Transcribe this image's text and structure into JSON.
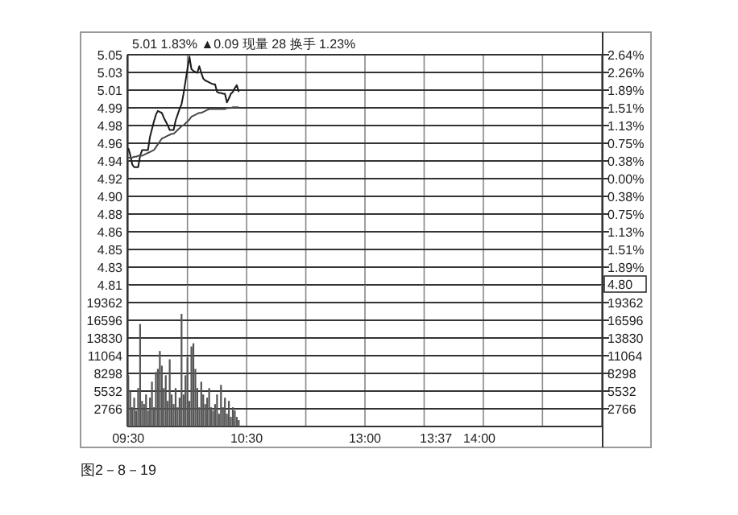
{
  "chart_data": [
    {
      "type": "line",
      "title": "5.01 1.83% ▲0.09 现量 28 换手 1.23%",
      "categories": [
        null,
        null,
        null,
        null,
        null,
        null,
        null,
        null,
        null,
        null,
        null,
        null,
        null,
        null,
        null,
        null,
        null,
        null,
        null,
        null,
        null,
        null,
        null,
        null,
        null,
        null,
        null,
        null,
        null,
        null,
        null,
        null,
        null,
        null,
        null,
        null,
        null,
        null,
        null,
        null,
        null,
        null,
        null,
        null,
        null,
        null,
        null,
        null,
        null,
        null,
        null,
        null,
        null,
        null,
        null,
        null,
        null,
        null,
        null,
        null,
        null,
        null,
        null,
        null,
        null,
        null,
        null,
        null,
        null,
        null,
        null,
        null,
        null,
        null,
        null,
        null,
        null,
        null,
        null,
        null,
        null,
        null,
        null,
        null,
        null,
        null,
        null,
        null,
        null,
        null,
        null,
        null,
        null,
        null,
        null,
        null,
        null,
        null,
        null,
        null,
        null,
        null,
        null,
        null,
        null,
        null,
        null,
        null,
        null,
        null,
        null,
        null,
        null,
        null,
        null,
        null,
        null,
        null,
        null,
        null,
        null,
        null,
        null,
        null,
        null,
        null,
        null,
        null,
        null,
        null,
        null,
        null,
        null,
        null,
        null,
        null,
        null,
        null,
        null,
        null,
        null,
        null,
        null,
        null,
        null,
        null,
        null,
        null,
        null,
        null,
        null,
        null,
        null,
        null,
        null,
        null,
        null,
        null,
        null,
        null,
        null,
        null,
        null,
        null,
        null,
        null,
        null,
        null,
        null,
        null,
        null,
        null,
        null,
        null,
        null,
        null,
        null,
        null,
        null,
        null,
        null,
        null,
        null,
        null,
        null,
        null,
        null,
        null,
        null,
        null,
        null,
        null,
        null,
        null,
        null,
        null,
        null,
        null,
        null,
        null,
        null,
        null,
        null,
        null,
        null,
        null,
        null,
        null,
        null,
        null,
        null,
        null,
        null,
        null,
        null,
        null,
        null,
        null,
        null,
        null,
        null,
        null,
        null,
        null,
        null,
        null,
        null,
        null,
        null,
        null,
        null,
        null,
        null,
        null,
        null,
        null,
        null,
        null,
        null,
        null,
        null
      ],
      "ylim": [
        4.80858,
        5.05
      ],
      "yticks": [
        {
          "value": 5.04999,
          "label": "5.05"
        },
        {
          "value": 5.03142,
          "label": "5.03"
        },
        {
          "value": 5.01285,
          "label": "5.01"
        },
        {
          "value": 4.99428,
          "label": "4.99"
        },
        {
          "value": 4.97571,
          "label": "4.98"
        },
        {
          "value": 4.95714,
          "label": "4.96"
        },
        {
          "value": 4.93857,
          "label": "4.94"
        },
        {
          "value": 4.92,
          "label": "4.92"
        },
        {
          "value": 4.90143,
          "label": "4.90"
        },
        {
          "value": 4.88286,
          "label": "4.88"
        },
        {
          "value": 4.86429,
          "label": "4.86"
        },
        {
          "value": 4.84572,
          "label": "4.85"
        },
        {
          "value": 4.82715,
          "label": "4.83"
        },
        {
          "value": 4.80858,
          "label": "4.81"
        }
      ],
      "y2lim": [
        -2.26,
        2.64
      ],
      "y2ticks": [
        {
          "value": 2.64,
          "label": "2.64%"
        },
        {
          "value": 2.26,
          "label": "2.26%"
        },
        {
          "value": 1.89,
          "label": "1.89%"
        },
        {
          "value": 1.51,
          "label": "1.51%"
        },
        {
          "value": 1.13,
          "label": "1.13%"
        },
        {
          "value": 0.75,
          "label": "0.75%"
        },
        {
          "value": 0.38,
          "label": "0.38%"
        },
        {
          "value": 0,
          "label": "0.00%"
        },
        {
          "value": -0.38,
          "label": "0.38%"
        },
        {
          "value": -0.75,
          "label": "0.75%"
        },
        {
          "value": -1.13,
          "label": "1.13%"
        },
        {
          "value": -1.51,
          "label": "1.51%"
        },
        {
          "value": -1.89,
          "label": "1.89%"
        }
      ],
      "grid": true,
      "annotations": [
        "4.80"
      ],
      "series": [
        {
          "color": "#1a1a1a",
          "values": [
            4.952,
            4.945,
            4.935,
            4.932,
            4.932,
            4.932,
            4.944,
            4.95,
            4.95,
            4.95,
            4.95,
            4.964,
            4.972,
            4.98,
            4.987,
            4.991,
            4.99,
            4.989,
            4.984,
            4.98,
            4.976,
            4.971,
            4.971,
            4.971,
            4.981,
            4.987,
            4.993,
            4.998,
            5.009,
            5.022,
            5.035,
            5.048,
            5.035,
            5.033,
            5.032,
            5.031,
            5.038,
            5.031,
            5.025,
            5.023,
            5.022,
            5.021,
            5.02,
            5.019,
            5.019,
            5.011,
            5.01,
            5.01,
            5.009,
            5.009,
            5.0,
            5.004,
            5.009,
            5.011,
            5.015,
            5.018,
            5.011,
            null,
            null,
            null,
            null,
            null,
            null,
            null,
            null,
            null,
            null,
            null,
            null,
            null,
            null,
            null,
            null,
            null,
            null,
            null,
            null,
            null,
            null,
            null,
            null,
            null,
            null,
            null,
            null,
            null,
            null,
            null,
            null,
            null,
            null,
            null,
            null,
            null,
            null,
            null,
            null,
            null,
            null,
            null,
            null,
            null,
            null,
            null,
            null,
            null,
            null,
            null,
            null,
            null,
            null,
            null,
            null,
            null,
            null,
            null,
            null,
            null,
            null,
            null,
            null,
            null,
            null,
            null,
            null,
            null,
            null,
            null,
            null,
            null,
            null,
            null,
            null,
            null,
            null,
            null,
            null,
            null,
            null,
            null,
            null,
            null,
            null,
            null,
            null,
            null,
            null,
            null,
            null,
            null,
            null,
            null,
            null,
            null,
            null,
            null,
            null,
            null,
            null,
            null,
            null,
            null,
            null,
            null,
            null,
            null,
            null,
            null,
            null,
            null,
            null,
            null,
            null,
            null,
            null,
            null,
            null,
            null,
            null,
            null,
            null,
            null,
            null,
            null,
            null,
            null,
            null,
            null,
            null,
            null,
            null,
            null,
            null,
            null,
            null,
            null,
            null,
            null,
            null,
            null,
            null,
            null,
            null,
            null,
            null,
            null,
            null,
            null,
            null,
            null,
            null,
            null,
            null,
            null,
            null,
            null,
            null,
            null,
            null,
            null,
            null,
            null,
            null,
            null,
            null,
            null,
            null,
            null,
            null,
            null,
            null,
            null,
            null,
            null,
            null,
            null,
            null,
            null,
            null,
            null,
            null
          ]
        },
        {
          "color": "#4a4a4a",
          "values": [
            4.942,
            4.942,
            4.942,
            4.943,
            4.943,
            4.944,
            4.944,
            4.944,
            4.945,
            4.946,
            4.947,
            4.948,
            4.949,
            4.95,
            4.953,
            4.956,
            4.959,
            4.962,
            4.963,
            4.964,
            4.965,
            4.966,
            4.967,
            4.967,
            4.969,
            4.971,
            4.973,
            4.975,
            4.976,
            4.978,
            4.98,
            4.982,
            4.985,
            4.986,
            4.987,
            4.988,
            4.989,
            4.989,
            4.99,
            4.991,
            4.992,
            4.993,
            4.993,
            4.993,
            4.993,
            4.993,
            4.993,
            4.993,
            4.993,
            4.993,
            4.994,
            4.994,
            4.994,
            4.995,
            4.995,
            4.995,
            4.995,
            null,
            null,
            null,
            null,
            null,
            null,
            null,
            null,
            null,
            null,
            null,
            null,
            null,
            null,
            null,
            null,
            null,
            null,
            null,
            null,
            null,
            null,
            null,
            null,
            null,
            null,
            null,
            null,
            null,
            null,
            null,
            null,
            null,
            null,
            null,
            null,
            null,
            null,
            null,
            null,
            null,
            null,
            null,
            null,
            null,
            null,
            null,
            null,
            null,
            null,
            null,
            null,
            null,
            null,
            null,
            null,
            null,
            null,
            null,
            null,
            null,
            null,
            null,
            null,
            null,
            null,
            null,
            null,
            null,
            null,
            null,
            null,
            null,
            null,
            null,
            null,
            null,
            null,
            null,
            null,
            null,
            null,
            null,
            null,
            null,
            null,
            null,
            null,
            null,
            null,
            null,
            null,
            null,
            null,
            null,
            null,
            null,
            null,
            null,
            null,
            null,
            null,
            null,
            null,
            null,
            null,
            null,
            null,
            null,
            null,
            null,
            null,
            null,
            null,
            null,
            null,
            null,
            null,
            null,
            null,
            null,
            null,
            null,
            null,
            null,
            null,
            null,
            null,
            null,
            null,
            null,
            null,
            null,
            null,
            null,
            null,
            null,
            null,
            null,
            null,
            null,
            null,
            null,
            null,
            null,
            null,
            null,
            null,
            null,
            null,
            null,
            null,
            null,
            null,
            null,
            null,
            null,
            null,
            null,
            null,
            null,
            null,
            null,
            null,
            null,
            null,
            null,
            null,
            null,
            null,
            null,
            null,
            null,
            null,
            null,
            null,
            null,
            null,
            null,
            null,
            null,
            null,
            null,
            null
          ]
        }
      ]
    },
    {
      "type": "bar",
      "categories": [
        "09:30",
        null,
        null,
        null,
        null,
        null,
        null,
        null,
        null,
        null,
        null,
        null,
        null,
        null,
        null,
        null,
        null,
        null,
        null,
        null,
        null,
        null,
        null,
        null,
        null,
        null,
        null,
        null,
        null,
        null,
        null,
        null,
        null,
        null,
        null,
        null,
        null,
        null,
        null,
        null,
        null,
        null,
        null,
        null,
        null,
        null,
        null,
        null,
        null,
        null,
        null,
        null,
        null,
        null,
        null,
        null,
        null,
        null,
        null,
        null,
        "10:30",
        null,
        null,
        null,
        null,
        null,
        null,
        null,
        null,
        null,
        null,
        null,
        null,
        null,
        null,
        null,
        null,
        null,
        null,
        null,
        null,
        null,
        null,
        null,
        null,
        null,
        null,
        null,
        null,
        null,
        null,
        null,
        null,
        null,
        null,
        null,
        null,
        null,
        null,
        null,
        null,
        null,
        null,
        null,
        null,
        null,
        null,
        null,
        null,
        null,
        null,
        null,
        null,
        null,
        null,
        null,
        null,
        null,
        null,
        null,
        "13:00",
        null,
        null,
        null,
        null,
        null,
        null,
        null,
        null,
        null,
        null,
        null,
        null,
        null,
        null,
        null,
        null,
        null,
        null,
        null,
        null,
        null,
        null,
        null,
        null,
        null,
        null,
        null,
        null,
        null,
        null,
        null,
        null,
        null,
        null,
        null,
        "13:37",
        null,
        null,
        null,
        null,
        null,
        null,
        null,
        null,
        null,
        null,
        null,
        null,
        null,
        null,
        null,
        null,
        null,
        null,
        null,
        null,
        null,
        "14:00",
        null,
        null,
        null,
        null,
        null,
        null,
        null,
        null,
        null,
        null,
        null,
        null,
        null,
        null,
        null,
        null,
        null,
        null,
        null,
        null,
        null,
        null,
        null,
        null,
        null,
        null,
        null,
        null,
        null,
        null,
        null,
        null,
        null,
        null,
        null,
        null,
        null,
        null,
        null,
        null,
        null,
        null,
        null,
        null,
        null,
        null,
        null,
        null,
        null,
        null,
        null,
        null,
        null,
        null,
        null,
        null,
        null,
        null,
        null,
        null,
        null,
        null
      ],
      "ylim": [
        0,
        22128
      ],
      "yticks": [
        2766,
        5532,
        8298,
        11064,
        13830,
        16596,
        19362
      ],
      "y2lim": [
        0,
        22128
      ],
      "y2ticks": [
        2766,
        5532,
        8298,
        11064,
        13830,
        16596,
        19362
      ],
      "grid": true,
      "color": "#555555",
      "annotations": [
        "图2－8－19"
      ],
      "values": [
        8000,
        5500,
        3000,
        4500,
        2500,
        6000,
        16000,
        4000,
        3500,
        5000,
        2500,
        4500,
        7000,
        3000,
        8500,
        9000,
        11800,
        9500,
        6000,
        8000,
        4000,
        10500,
        5000,
        3500,
        6000,
        3000,
        4500,
        17600,
        5000,
        8000,
        10800,
        4000,
        12500,
        13000,
        9000,
        6000,
        3000,
        7000,
        5000,
        3500,
        4500,
        6000,
        3000,
        2500,
        3500,
        5000,
        2000,
        6500,
        3000,
        4500,
        2000,
        4000,
        1500,
        3000,
        2500,
        1500,
        1000,
        null,
        null,
        null,
        null,
        null,
        null,
        null,
        null,
        null,
        null,
        null,
        null,
        null,
        null,
        null,
        null,
        null,
        null,
        null,
        null,
        null,
        null,
        null,
        null,
        null,
        null,
        null,
        null,
        null,
        null,
        null,
        null,
        null,
        null,
        null,
        null,
        null,
        null,
        null,
        null,
        null,
        null,
        null,
        null,
        null,
        null,
        null,
        null,
        null,
        null,
        null,
        null,
        null,
        null,
        null,
        null,
        null,
        null,
        null,
        null,
        null,
        null,
        null,
        null,
        null,
        null,
        null,
        null,
        null,
        null,
        null,
        null,
        null,
        null,
        null,
        null,
        null,
        null,
        null,
        null,
        null,
        null,
        null,
        null,
        null,
        null,
        null,
        null,
        null,
        null,
        null,
        null,
        null,
        null,
        null,
        null,
        null,
        null,
        null,
        null,
        null,
        null,
        null,
        null,
        null,
        null,
        null,
        null,
        null,
        null,
        null,
        null,
        null,
        null,
        null,
        null,
        null,
        null,
        null,
        null,
        null,
        null,
        null,
        null,
        null,
        null,
        null,
        null,
        null,
        null,
        null,
        null,
        null,
        null,
        null,
        null,
        null,
        null,
        null,
        null,
        null,
        null,
        null,
        null,
        null,
        null,
        null,
        null,
        null,
        null,
        null,
        null,
        null,
        null,
        null,
        null,
        null,
        null,
        null,
        null,
        null,
        null,
        null,
        null,
        null,
        null,
        null,
        null,
        null,
        null,
        null,
        null,
        null,
        null,
        null,
        null,
        null,
        null,
        null,
        null,
        null,
        null,
        null,
        null
      ]
    }
  ]
}
